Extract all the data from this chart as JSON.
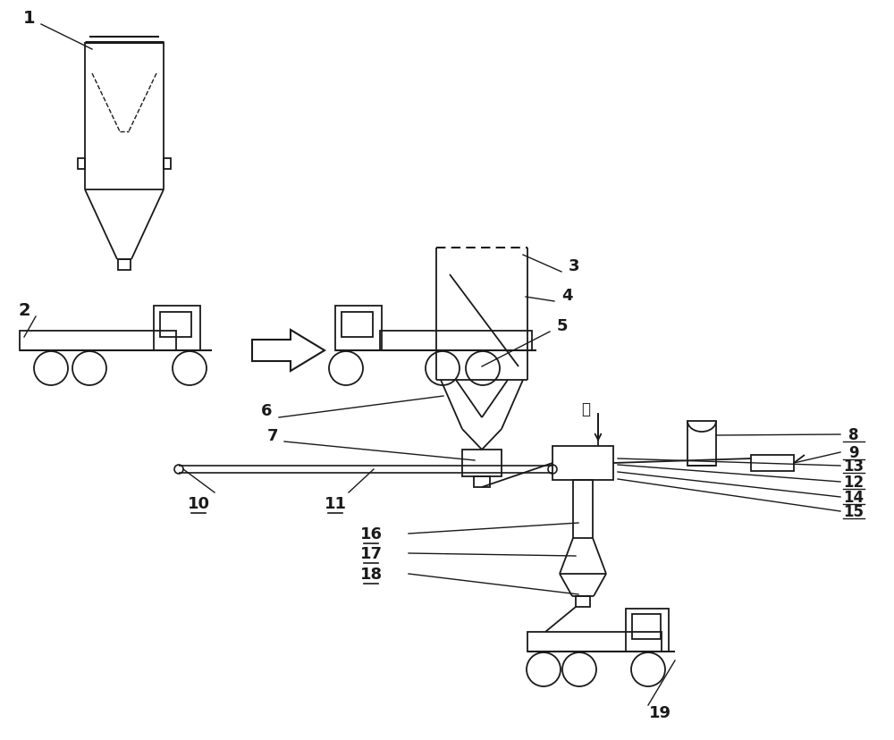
{
  "bg_color": "#ffffff",
  "line_color": "#1a1a1a",
  "figsize": [
    10.0,
    8.29
  ],
  "dpi": 100
}
